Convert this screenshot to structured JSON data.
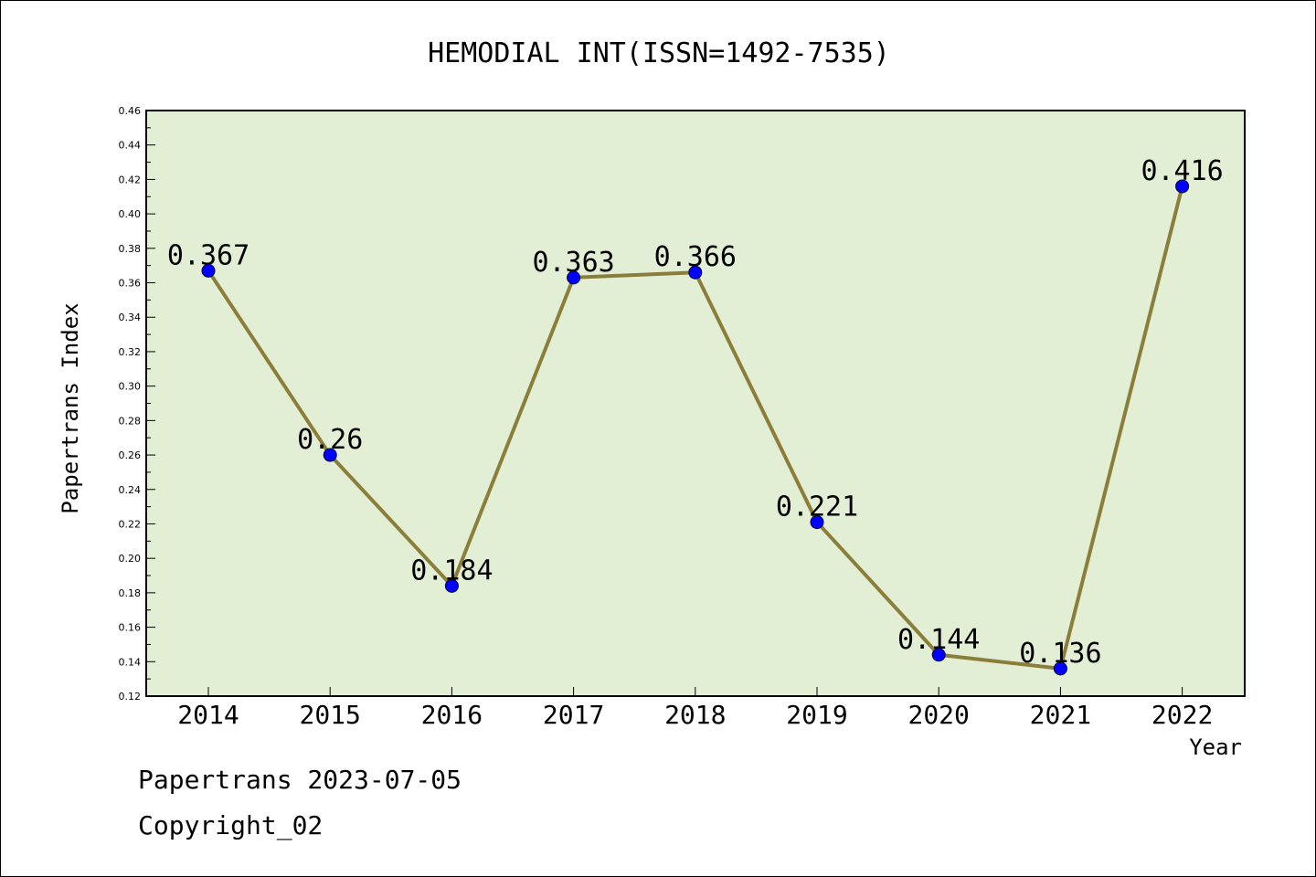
{
  "chart_data": {
    "type": "line",
    "title": "HEMODIAL INT(ISSN=1492-7535)",
    "xlabel": "Year",
    "ylabel": "Papertrans Index",
    "categories": [
      "2014",
      "2015",
      "2016",
      "2017",
      "2018",
      "2019",
      "2020",
      "2021",
      "2022"
    ],
    "series": [
      {
        "values": [
          0.367,
          0.26,
          0.184,
          0.363,
          0.366,
          0.221,
          0.144,
          0.136,
          0.416
        ],
        "labels": [
          "0.367",
          "0.26",
          "0.184",
          "0.363",
          "0.366",
          "0.221",
          "0.144",
          "0.136",
          "0.416"
        ],
        "line_color": "#8b7d3a",
        "marker_color": "#0000ff"
      }
    ],
    "ylim": [
      0.12,
      0.46
    ],
    "yticks": [
      "0.12",
      "0.14",
      "0.16",
      "0.18",
      "0.20",
      "0.22",
      "0.24",
      "0.26",
      "0.28",
      "0.30",
      "0.32",
      "0.34",
      "0.36",
      "0.38",
      "0.40",
      "0.42",
      "0.44",
      "0.46"
    ],
    "plot_background": "#e2efd5",
    "grid": false
  },
  "footer": {
    "line1": "Papertrans 2023-07-05",
    "line2": "Copyright_02"
  }
}
